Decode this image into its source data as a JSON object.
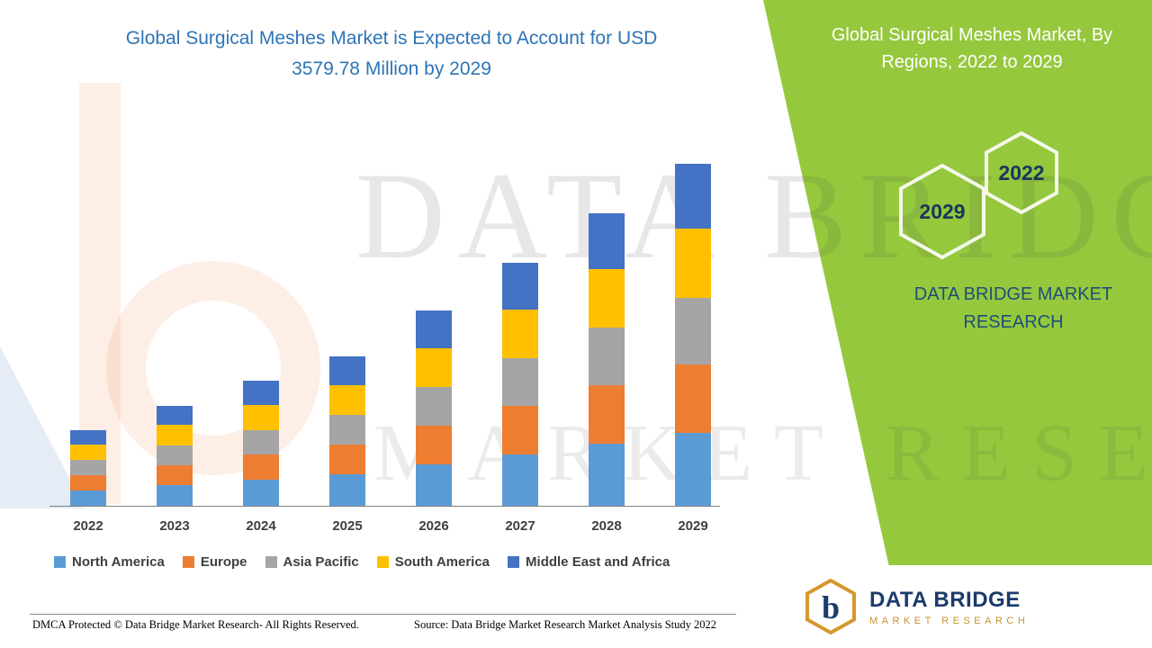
{
  "left_panel": {
    "title_line1": "Global Surgical Meshes Market is Expected to Account for USD",
    "title_line2": "3579.78 Million by 2029"
  },
  "right_panel": {
    "title": "Global Surgical Meshes Market, By Regions, 2022 to 2029",
    "badge_back": "2029",
    "badge_front": "2022",
    "brand": "DATA BRIDGE MARKET RESEARCH",
    "green_color": "#95C83C",
    "navy_color": "#1F4E79"
  },
  "watermark": {
    "line1": "DATA BRIDGE",
    "line2": "MARKET RESEARCH"
  },
  "footer": {
    "dmca": "DMCA Protected © Data Bridge Market Research- All Rights Reserved.",
    "source": "Source: Data Bridge Market Research Market Analysis Study 2022",
    "logo_name": "DATA BRIDGE",
    "logo_tagline": "MARKET RESEARCH",
    "logo_letter": "b"
  },
  "chart_data": {
    "type": "bar",
    "stacked": true,
    "title": "Global Surgical Meshes Market is Expected to Account for USD 3579.78 Million by 2029",
    "unit": "USD Million",
    "categories": [
      "2022",
      "2023",
      "2024",
      "2025",
      "2026",
      "2027",
      "2028",
      "2029"
    ],
    "series": [
      {
        "name": "North America",
        "color": "#5B9BD5",
        "values": [
          172,
          226,
          283,
          337,
          440,
          547,
          659,
          770
        ]
      },
      {
        "name": "Europe",
        "color": "#ED7D31",
        "values": [
          160,
          210,
          263,
          314,
          410,
          509,
          613,
          716
        ]
      },
      {
        "name": "Asia Pacific",
        "color": "#A5A5A5",
        "values": [
          156,
          205,
          256,
          306,
          399,
          497,
          597,
          698
        ]
      },
      {
        "name": "South America",
        "color": "#FFC000",
        "values": [
          160,
          211,
          263,
          314,
          410,
          509,
          613,
          716
        ]
      },
      {
        "name": "Middle East and Africa",
        "color": "#4472C4",
        "values": [
          152,
          200,
          250,
          298,
          389,
          484,
          581,
          679.78
        ]
      }
    ],
    "totals": [
      800,
      1052,
      1315,
      1569,
      2048,
      2546,
      3063,
      3579.78
    ],
    "ylim": [
      0,
      3800
    ],
    "grid": false,
    "legend_position": "bottom"
  }
}
